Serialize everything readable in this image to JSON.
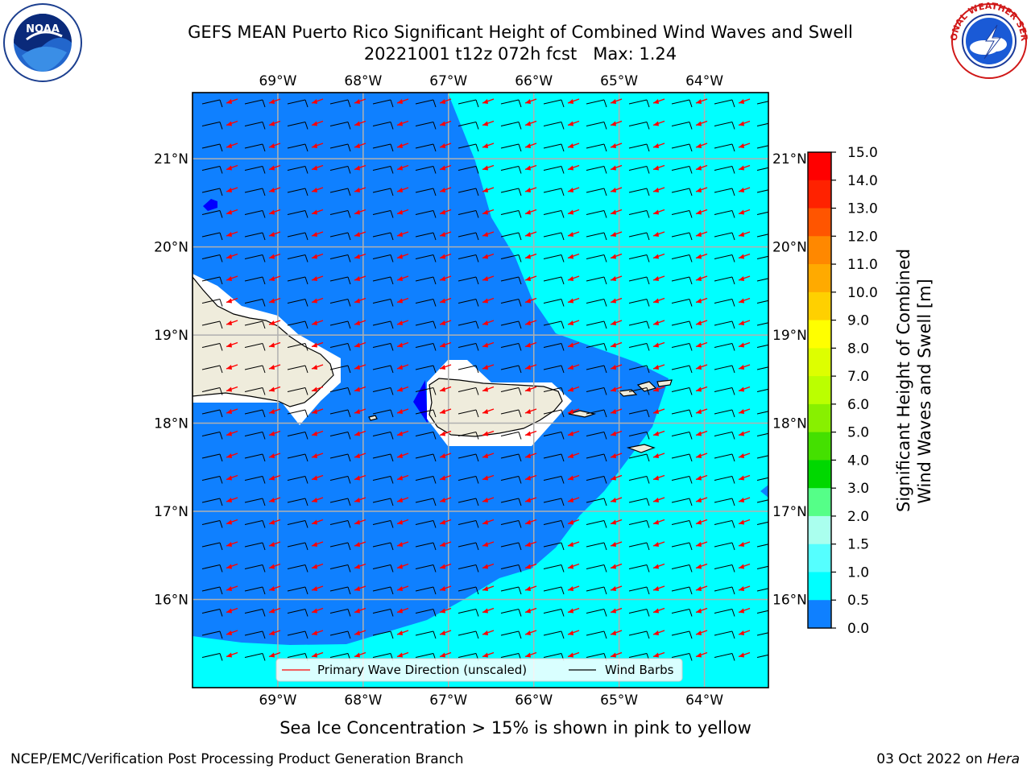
{
  "header": {
    "title_line1": "GEFS MEAN Puerto Rico Significant Height of Combined Wind Waves and Swell",
    "title_line2": "20221001 t12z 072h fcst   Max: 1.24"
  },
  "logos": {
    "left": {
      "icon": "noaa-logo-icon",
      "text": "NOAA"
    },
    "right": {
      "icon": "nws-logo-icon",
      "ring_text": "NATIONAL WEATHER SERVICE"
    }
  },
  "map": {
    "lon_ticks": [
      "69°W",
      "68°W",
      "67°W",
      "66°W",
      "65°W",
      "64°W"
    ],
    "lat_ticks": [
      "21°N",
      "20°N",
      "19°N",
      "18°N",
      "17°N",
      "16°N"
    ],
    "lon_values": [
      -69,
      -68,
      -67,
      -66,
      -65,
      -64
    ],
    "lat_values": [
      21,
      20,
      19,
      18,
      17,
      16
    ],
    "lon_range": [
      -70.0,
      -63.25
    ],
    "lat_range": [
      15.0,
      21.75
    ],
    "grid": true,
    "colors": {
      "land": "#efecdc",
      "ocean_low": "#0f80ff",
      "ocean_high": "#00ffff",
      "wave_arrow": "#ff0000",
      "wind_barb": "#000000"
    },
    "legend": {
      "placement": "bottom-center",
      "items": [
        {
          "label": "Primary Wave Direction (unscaled)",
          "color": "#ff0000"
        },
        {
          "label": "Wind Barbs",
          "color": "#000000"
        }
      ]
    }
  },
  "colorbar": {
    "label_line1": "Significant Height of Combined",
    "label_line2": "Wind Waves and Swell [m]",
    "ticks": [
      "15.0",
      "14.0",
      "13.0",
      "12.0",
      "11.0",
      "10.0",
      "9.0",
      "8.0",
      "7.0",
      "6.0",
      "5.0",
      "4.0",
      "3.0",
      "2.0",
      "1.5",
      "1.0",
      "0.5",
      "0.0"
    ],
    "levels_top_to_bottom": [
      15,
      14,
      13,
      12,
      11,
      10,
      9,
      8,
      7,
      6,
      5,
      4,
      3,
      2,
      1.5,
      1,
      0.5,
      0
    ],
    "band_colors_top_to_bottom": [
      "#ff0000",
      "#ff2200",
      "#ff5500",
      "#ff8800",
      "#ffaa00",
      "#ffd000",
      "#ffff00",
      "#ddff00",
      "#bbff00",
      "#88f000",
      "#44e000",
      "#00d800",
      "#55ff88",
      "#aaffee",
      "#55ffff",
      "#00ffff",
      "#0f80ff",
      "#0000ff"
    ]
  },
  "subtitle": "Sea Ice Concentration > 15% is shown in pink to yellow",
  "footer": {
    "left": "NCEP/EMC/Verification Post Processing Product Generation Branch",
    "right_date": "03 Oct 2022 on ",
    "right_host": "Hera"
  }
}
